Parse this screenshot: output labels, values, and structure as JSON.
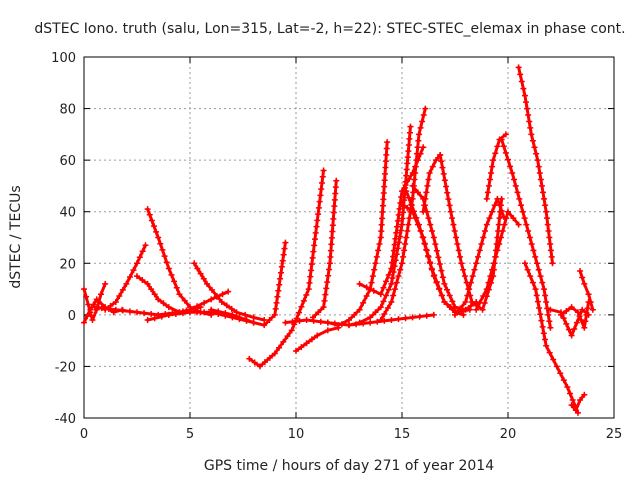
{
  "chart_data": {
    "type": "scatter",
    "title": "dSTEC Iono. truth (salu, Lon=315, Lat=-2, h=22): STEC-STEC_elemax in phase cont.",
    "xlabel": "GPS time / hours of day 271 of year 2014",
    "ylabel": "dSTEC  / TECUs",
    "xlim": [
      0,
      25
    ],
    "ylim": [
      -40,
      100
    ],
    "xticks": [
      0,
      5,
      10,
      15,
      20,
      25
    ],
    "yticks": [
      -40,
      -20,
      0,
      20,
      40,
      60,
      80,
      100
    ],
    "grid": true,
    "marker": "+",
    "color": "#ff0000",
    "series": [
      {
        "x": [
          0.0,
          0.2,
          0.4,
          0.6,
          0.8,
          1.0
        ],
        "y": [
          10,
          4,
          -2,
          2,
          8,
          12
        ]
      },
      {
        "x": [
          0.0,
          0.3,
          0.6,
          1.0,
          1.4,
          1.8
        ],
        "y": [
          -3,
          2,
          6,
          3,
          1,
          2
        ]
      },
      {
        "x": [
          1.0,
          1.5,
          2.0,
          2.5,
          2.9
        ],
        "y": [
          2,
          5,
          12,
          20,
          27
        ]
      },
      {
        "x": [
          0.5,
          1.5,
          2.5,
          3.5,
          4.5,
          5.5
        ],
        "y": [
          3,
          2,
          1,
          0,
          1,
          3
        ]
      },
      {
        "x": [
          2.5,
          3.0,
          3.5,
          4.0,
          4.5
        ],
        "y": [
          15,
          12,
          6,
          3,
          1
        ]
      },
      {
        "x": [
          3.0,
          3.5,
          4.0,
          4.5,
          5.0,
          5.5,
          6.0
        ],
        "y": [
          41,
          30,
          18,
          8,
          3,
          1,
          0
        ]
      },
      {
        "x": [
          3.0,
          4.0,
          5.0,
          6.0,
          6.8
        ],
        "y": [
          -2,
          0,
          2,
          6,
          9
        ]
      },
      {
        "x": [
          4.0,
          5.0,
          6.0,
          7.0,
          8.0
        ],
        "y": [
          0,
          1,
          1,
          -1,
          -3
        ]
      },
      {
        "x": [
          5.2,
          5.8,
          6.5,
          7.2,
          8.0,
          8.5
        ],
        "y": [
          20,
          12,
          5,
          1,
          -1,
          -2
        ]
      },
      {
        "x": [
          6.0,
          7.0,
          8.0,
          8.5,
          9.0,
          9.5
        ],
        "y": [
          2,
          0,
          -3,
          -4,
          0,
          28
        ]
      },
      {
        "x": [
          7.8,
          8.3,
          9.0,
          9.8,
          10.6,
          11.3
        ],
        "y": [
          -17,
          -20,
          -15,
          -6,
          10,
          56
        ]
      },
      {
        "x": [
          10.0,
          10.5,
          11.0,
          11.5,
          12.0
        ],
        "y": [
          -14,
          -11,
          -8,
          -6,
          -5
        ]
      },
      {
        "x": [
          10.8,
          11.3,
          11.6,
          11.9
        ],
        "y": [
          -1,
          3,
          20,
          52
        ]
      },
      {
        "x": [
          11.5,
          12.0,
          12.5,
          13.0,
          13.5,
          14.0,
          14.3
        ],
        "y": [
          -3,
          -4,
          -2,
          2,
          10,
          30,
          67
        ]
      },
      {
        "x": [
          12.5,
          13.0,
          13.5,
          14.0,
          14.5,
          15.0,
          15.4
        ],
        "y": [
          -4,
          -3,
          -1,
          3,
          12,
          35,
          73
        ]
      },
      {
        "x": [
          13.0,
          14.0,
          14.5,
          15.0,
          15.5,
          16.0
        ],
        "y": [
          12,
          8,
          18,
          48,
          55,
          65
        ]
      },
      {
        "x": [
          14.0,
          14.5,
          15.0,
          15.5,
          15.8,
          16.1
        ],
        "y": [
          -2,
          5,
          20,
          45,
          70,
          80
        ]
      },
      {
        "x": [
          15.0,
          15.5,
          16.0,
          16.5,
          17.0,
          17.5,
          17.9
        ],
        "y": [
          43,
          40,
          30,
          15,
          5,
          1,
          0
        ]
      },
      {
        "x": [
          15.2,
          15.8,
          16.4,
          17.0,
          17.6,
          18.2
        ],
        "y": [
          48,
          35,
          18,
          5,
          1,
          2
        ]
      },
      {
        "x": [
          15.5,
          16.0,
          16.5,
          17.0,
          17.5,
          18.0,
          18.5
        ],
        "y": [
          50,
          45,
          30,
          12,
          3,
          2,
          5
        ]
      },
      {
        "x": [
          16.0,
          16.3,
          16.6,
          16.8
        ],
        "y": [
          40,
          55,
          60,
          62
        ]
      },
      {
        "x": [
          16.8,
          17.3,
          17.8,
          18.3,
          18.8,
          19.3,
          19.7
        ],
        "y": [
          62,
          40,
          20,
          5,
          2,
          15,
          45
        ]
      },
      {
        "x": [
          17.5,
          18.0,
          18.5,
          19.0,
          19.5,
          19.8
        ],
        "y": [
          0,
          5,
          20,
          35,
          45,
          38
        ]
      },
      {
        "x": [
          18.5,
          19.0,
          19.5,
          20.0,
          20.5
        ],
        "y": [
          2,
          10,
          25,
          40,
          35
        ]
      },
      {
        "x": [
          19.0,
          19.3,
          19.6,
          19.9
        ],
        "y": [
          45,
          60,
          68,
          70
        ]
      },
      {
        "x": [
          19.7,
          20.2,
          20.7,
          21.2,
          21.7,
          22.0
        ],
        "y": [
          68,
          55,
          40,
          25,
          10,
          -5
        ]
      },
      {
        "x": [
          20.5,
          20.8,
          21.1,
          21.4,
          21.8,
          22.1
        ],
        "y": [
          96,
          85,
          70,
          60,
          40,
          20
        ]
      },
      {
        "x": [
          20.8,
          21.3,
          21.8,
          22.3,
          22.8,
          23.3
        ],
        "y": [
          20,
          10,
          -12,
          -20,
          -28,
          -38
        ]
      },
      {
        "x": [
          22.0,
          22.5,
          23.0,
          23.5,
          23.8
        ],
        "y": [
          2,
          1,
          -8,
          2,
          0
        ]
      },
      {
        "x": [
          22.5,
          23.0,
          23.3,
          23.6,
          23.8
        ],
        "y": [
          0,
          3,
          1,
          -5,
          5
        ]
      },
      {
        "x": [
          23.4,
          23.6,
          23.8,
          24.0
        ],
        "y": [
          17,
          12,
          8,
          2
        ]
      },
      {
        "x": [
          23.0,
          23.2,
          23.4,
          23.6
        ],
        "y": [
          -35,
          -37,
          -33,
          -31
        ]
      },
      {
        "x": [
          9.5,
          10.5,
          11.5,
          12.5,
          13.5,
          14.5,
          15.5,
          16.5
        ],
        "y": [
          -3,
          -2,
          -3,
          -4,
          -3,
          -2,
          -1,
          0
        ]
      }
    ]
  }
}
